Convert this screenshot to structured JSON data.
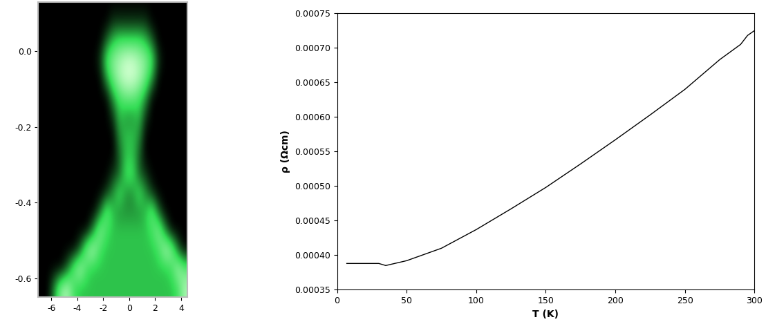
{
  "chart_data": [
    {
      "type": "heatmap",
      "color": "#33dd55",
      "x_edges": [
        -7,
        -6.5,
        -6,
        -5.5,
        -5,
        -4.5,
        -4,
        -3.5,
        -3,
        -2.5,
        -2,
        -1.5,
        -1,
        -0.5,
        0,
        0.5,
        1,
        1.5,
        2,
        2.5,
        3,
        3.5,
        4,
        4.5
      ],
      "y_edges": [
        0.15,
        0.1,
        0.05,
        0.0,
        -0.05,
        -0.1,
        -0.15,
        -0.2,
        -0.25,
        -0.3,
        -0.35,
        -0.4,
        -0.45,
        -0.5,
        -0.55,
        -0.6,
        -0.65
      ],
      "cells": [
        [
          0,
          0,
          0,
          0,
          0,
          0,
          0,
          0,
          0,
          0,
          0,
          0,
          0,
          0,
          0,
          0,
          0,
          0,
          0,
          0,
          0,
          0,
          0
        ],
        [
          0,
          0,
          0,
          0,
          0,
          0,
          0,
          0,
          0,
          0,
          0,
          1,
          1,
          1,
          1,
          1,
          1,
          0,
          0,
          0,
          0,
          0,
          0
        ],
        [
          0,
          0,
          0,
          0,
          0,
          0,
          0,
          0,
          0,
          0,
          2,
          4,
          5,
          5,
          5,
          5,
          4,
          2,
          0,
          0,
          0,
          0,
          0
        ],
        [
          0,
          0,
          0,
          0,
          0,
          0,
          0,
          0,
          0,
          1,
          5,
          7,
          8,
          9,
          9,
          8,
          7,
          5,
          1,
          0,
          0,
          0,
          0
        ],
        [
          0,
          0,
          0,
          0,
          0,
          0,
          0,
          0,
          0,
          0,
          3,
          6,
          8,
          9,
          9,
          8,
          6,
          3,
          0,
          0,
          0,
          0,
          0
        ],
        [
          0,
          0,
          0,
          0,
          0,
          0,
          0,
          0,
          0,
          0,
          0,
          3,
          5,
          6,
          6,
          5,
          3,
          0,
          0,
          0,
          0,
          0,
          0
        ],
        [
          0,
          0,
          0,
          0,
          0,
          0,
          0,
          0,
          0,
          0,
          0,
          1,
          4,
          3,
          3,
          4,
          1,
          0,
          0,
          0,
          0,
          0,
          0
        ],
        [
          0,
          0,
          0,
          0,
          0,
          0,
          0,
          0,
          0,
          0,
          0,
          0,
          3,
          4,
          4,
          3,
          0,
          0,
          0,
          0,
          0,
          0,
          0
        ],
        [
          0,
          0,
          0,
          0,
          0,
          0,
          0,
          0,
          0,
          0,
          0,
          0,
          2,
          4,
          4,
          2,
          0,
          0,
          0,
          0,
          0,
          0,
          0
        ],
        [
          0,
          0,
          0,
          0,
          0,
          0,
          0,
          0,
          0,
          0,
          0,
          1,
          2,
          5,
          5,
          2,
          1,
          0,
          0,
          0,
          0,
          0,
          0
        ],
        [
          0,
          0,
          0,
          0,
          0,
          0,
          0,
          0,
          0,
          0,
          1,
          3,
          5,
          3,
          3,
          5,
          3,
          1,
          0,
          0,
          0,
          0,
          0
        ],
        [
          0,
          0,
          0,
          0,
          0,
          0,
          0,
          0,
          0,
          2,
          6,
          4,
          3,
          3,
          3,
          3,
          4,
          6,
          2,
          0,
          0,
          0,
          0
        ],
        [
          0,
          0,
          0,
          0,
          0,
          0,
          0,
          0,
          3,
          7,
          5,
          4,
          4,
          4,
          4,
          4,
          4,
          5,
          7,
          3,
          0,
          0,
          0
        ],
        [
          0,
          0,
          0,
          0,
          0,
          0,
          2,
          7,
          8,
          5,
          4,
          4,
          4,
          4,
          4,
          4,
          4,
          4,
          5,
          8,
          7,
          2,
          0
        ],
        [
          0,
          0,
          0,
          0,
          2,
          6,
          8,
          5,
          4,
          4,
          4,
          4,
          4,
          4,
          4,
          4,
          4,
          4,
          4,
          4,
          5,
          8,
          6
        ],
        [
          0,
          0,
          3,
          7,
          8,
          5,
          4,
          4,
          4,
          4,
          4,
          4,
          4,
          4,
          4,
          4,
          4,
          4,
          4,
          4,
          4,
          5,
          8
        ]
      ],
      "xlim": [
        -7,
        4.5
      ],
      "ylim": [
        -0.65,
        0.13
      ],
      "xticks": [
        -6,
        -4,
        -2,
        0,
        2,
        4
      ],
      "yticks": [
        0.0,
        -0.2,
        -0.4,
        -0.6
      ]
    },
    {
      "type": "line",
      "color": "#000000",
      "x_label": "T (K)",
      "y_label": "ρ (Ωcm)",
      "x": [
        7,
        30,
        35,
        50,
        75,
        100,
        125,
        150,
        175,
        200,
        225,
        250,
        275,
        290,
        295,
        300
      ],
      "values": [
        0.000388,
        0.000388,
        0.000385,
        0.000392,
        0.00041,
        0.000437,
        0.000467,
        0.000498,
        0.000532,
        0.000567,
        0.000603,
        0.00064,
        0.000683,
        0.000705,
        0.000718,
        0.000725
      ],
      "xlim": [
        0,
        300
      ],
      "ylim": [
        0.00035,
        0.00075
      ],
      "xticks": [
        0,
        50,
        100,
        150,
        200,
        250,
        300
      ],
      "yticks": [
        {
          "value": 0.00035,
          "label": "0.00035"
        },
        {
          "value": 0.0004,
          "label": "0.00040"
        },
        {
          "value": 0.00045,
          "label": "0.00045"
        },
        {
          "value": 0.0005,
          "label": "0.00050"
        },
        {
          "value": 0.00055,
          "label": "0.00055"
        },
        {
          "value": 0.0006,
          "label": "0.00060"
        },
        {
          "value": 0.00065,
          "label": "0.00065"
        },
        {
          "value": 0.0007,
          "label": "0.00070"
        },
        {
          "value": 0.00075,
          "label": "0.00075"
        }
      ]
    }
  ]
}
